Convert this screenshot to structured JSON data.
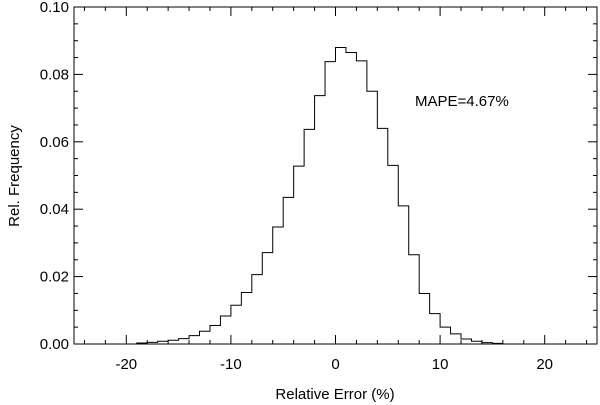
{
  "chart_data": {
    "type": "histogram",
    "title": "",
    "xlabel": "Relative Error (%)",
    "ylabel": "Rel. Frequency",
    "xlim": [
      -25,
      25
    ],
    "ylim": [
      0,
      0.1
    ],
    "xticks": [
      -20,
      -10,
      0,
      10,
      20
    ],
    "xtick_labels": [
      "-20",
      "-10",
      "0",
      "10",
      "20"
    ],
    "yticks": [
      0.0,
      0.02,
      0.04,
      0.06,
      0.08,
      0.1
    ],
    "ytick_labels": [
      "0.00",
      "0.02",
      "0.04",
      "0.06",
      "0.08",
      "0.10"
    ],
    "grid": false,
    "bin_edges": [
      -21,
      -20,
      -19,
      -18,
      -17,
      -16,
      -15,
      -14,
      -13,
      -12,
      -11,
      -10,
      -9,
      -8,
      -7,
      -6,
      -5,
      -4,
      -3,
      -2,
      -1,
      0,
      1,
      2,
      3,
      4,
      5,
      6,
      7,
      8,
      9,
      10,
      11,
      12,
      13,
      14,
      15,
      16,
      17,
      18,
      19,
      20,
      21
    ],
    "values": [
      0.0,
      0.0,
      0.0003,
      0.0005,
      0.0008,
      0.0011,
      0.0016,
      0.0025,
      0.0038,
      0.0055,
      0.0083,
      0.0115,
      0.0153,
      0.0206,
      0.0271,
      0.0347,
      0.0435,
      0.0528,
      0.0637,
      0.0737,
      0.0838,
      0.088,
      0.0865,
      0.084,
      0.075,
      0.064,
      0.053,
      0.041,
      0.0265,
      0.015,
      0.009,
      0.005,
      0.003,
      0.0015,
      0.0008,
      0.0004,
      0.0002,
      0.0,
      0.0,
      0.0,
      0.0,
      0.0
    ],
    "annotations": [
      {
        "text": "MAPE=4.67%"
      }
    ]
  }
}
